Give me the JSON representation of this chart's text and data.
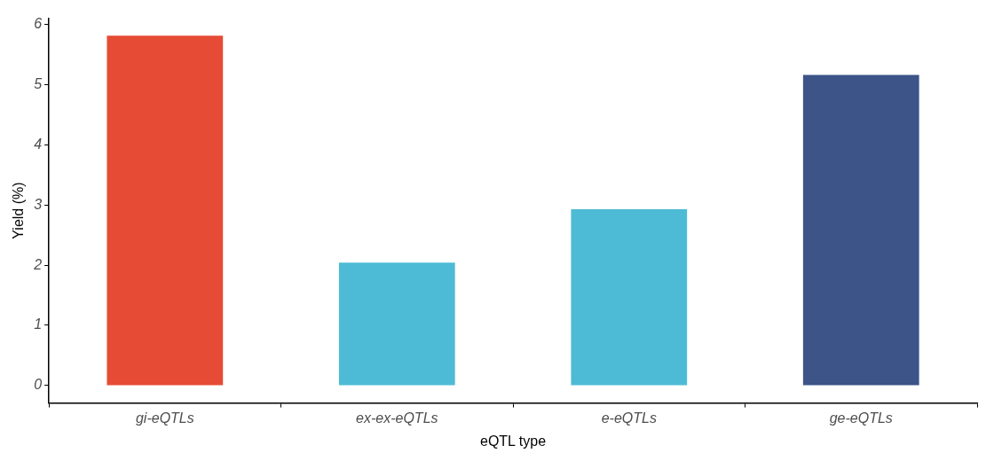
{
  "chart_data": {
    "type": "bar",
    "categories": [
      "gi-eQTLs",
      "ex-ex-eQTLs",
      "e-eQTLs",
      "ge-eQTLs"
    ],
    "values": [
      5.81,
      2.04,
      2.93,
      5.16
    ],
    "colors": [
      "#e64b35",
      "#4dbbd5",
      "#4dbbd5",
      "#3c5488"
    ],
    "xlabel": "eQTL type",
    "ylabel": "Yield (%)",
    "ylim": [
      -0.29,
      6.1
    ],
    "yticks": [
      0,
      1,
      2,
      3,
      4,
      5,
      6
    ],
    "grid": false,
    "legend": false
  }
}
